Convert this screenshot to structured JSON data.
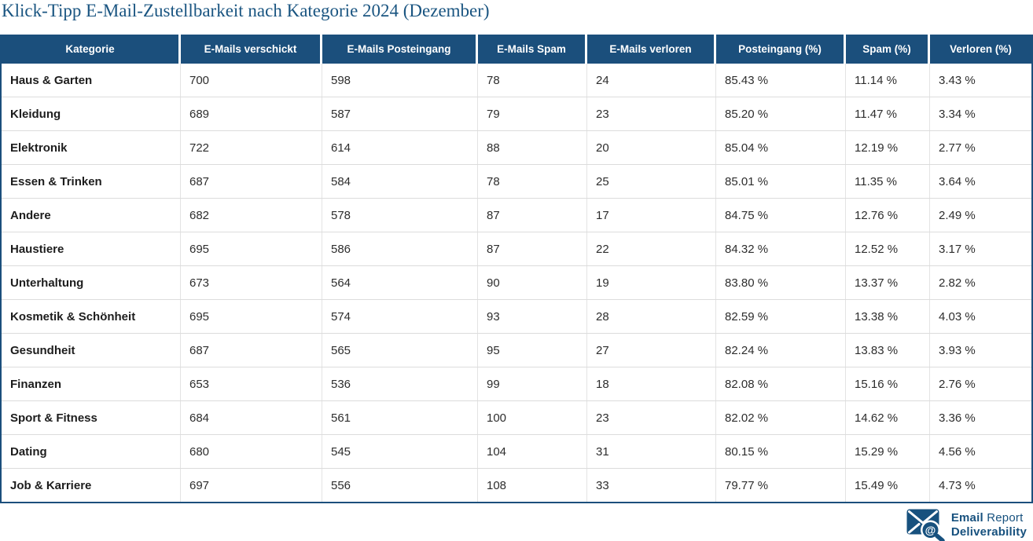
{
  "chart_data": {
    "type": "table",
    "title": "Klick-Tipp E-Mail-Zustellbarkeit nach Kategorie 2024 (Dezember)",
    "columns": [
      "Kategorie",
      "E-Mails verschickt",
      "E-Mails Posteingang",
      "E-Mails Spam",
      "E-Mails verloren",
      "Posteingang (%)",
      "Spam (%)",
      "Verloren (%)"
    ],
    "rows": [
      [
        "Haus & Garten",
        700,
        598,
        78,
        24,
        "85.43 %",
        "11.14 %",
        "3.43 %"
      ],
      [
        "Kleidung",
        689,
        587,
        79,
        23,
        "85.20 %",
        "11.47 %",
        "3.34 %"
      ],
      [
        "Elektronik",
        722,
        614,
        88,
        20,
        "85.04 %",
        "12.19 %",
        "2.77 %"
      ],
      [
        "Essen & Trinken",
        687,
        584,
        78,
        25,
        "85.01 %",
        "11.35 %",
        "3.64 %"
      ],
      [
        "Andere",
        682,
        578,
        87,
        17,
        "84.75 %",
        "12.76 %",
        "2.49 %"
      ],
      [
        "Haustiere",
        695,
        586,
        87,
        22,
        "84.32 %",
        "12.52 %",
        "3.17 %"
      ],
      [
        "Unterhaltung",
        673,
        564,
        90,
        19,
        "83.80 %",
        "13.37 %",
        "2.82 %"
      ],
      [
        "Kosmetik & Schönheit",
        695,
        574,
        93,
        28,
        "82.59 %",
        "13.38 %",
        "4.03 %"
      ],
      [
        "Gesundheit",
        687,
        565,
        95,
        27,
        "82.24 %",
        "13.83 %",
        "3.93 %"
      ],
      [
        "Finanzen",
        653,
        536,
        99,
        18,
        "82.08 %",
        "15.16 %",
        "2.76 %"
      ],
      [
        "Sport & Fitness",
        684,
        561,
        100,
        23,
        "82.02 %",
        "14.62 %",
        "3.36 %"
      ],
      [
        "Dating",
        680,
        545,
        104,
        31,
        "80.15 %",
        "15.29 %",
        "4.56 %"
      ],
      [
        "Job & Karriere",
        697,
        556,
        108,
        33,
        "79.77 %",
        "15.49 %",
        "4.73 %"
      ]
    ]
  },
  "colors": {
    "header_bg": "#1b4f7c",
    "title_text": "#1a5581",
    "logo_blue": "#17517e",
    "row_divider": "#dcdcdc"
  },
  "footer_logo": {
    "line1_bold": "Email",
    "line1_regular": " Report",
    "line2": "Deliverability"
  }
}
